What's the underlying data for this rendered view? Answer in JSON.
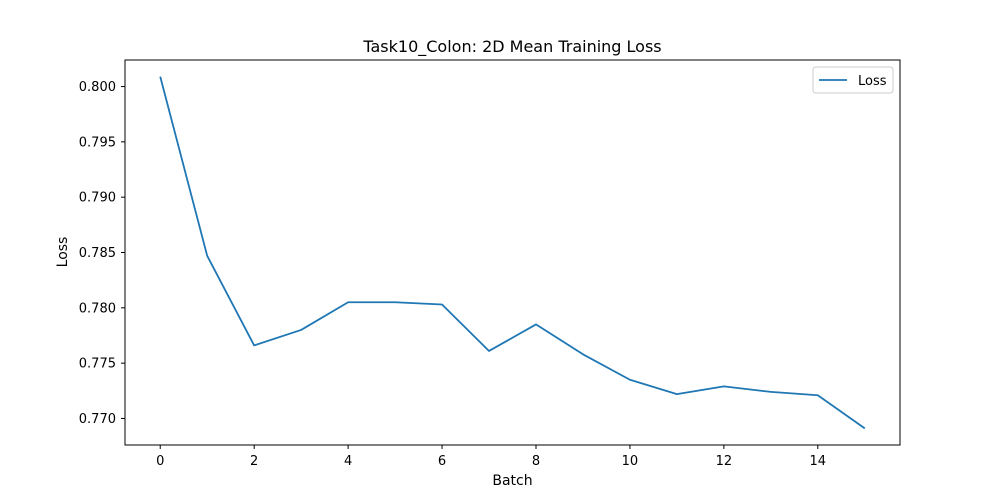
{
  "chart_data": {
    "type": "line",
    "title": "Task10_Colon: 2D Mean Training Loss",
    "xlabel": "Batch",
    "ylabel": "Loss",
    "x": [
      0,
      1,
      2,
      3,
      4,
      5,
      6,
      7,
      8,
      9,
      10,
      11,
      12,
      13,
      14,
      15
    ],
    "xlim": [
      -0.75,
      15.75
    ],
    "ylim": [
      0.7676,
      0.8024
    ],
    "xticks": [
      0,
      2,
      4,
      6,
      8,
      10,
      12,
      14
    ],
    "yticks": [
      0.77,
      0.775,
      0.78,
      0.785,
      0.79,
      0.795,
      0.8
    ],
    "xtick_labels": [
      "0",
      "2",
      "4",
      "6",
      "8",
      "10",
      "12",
      "14"
    ],
    "ytick_labels": [
      "0.770",
      "0.775",
      "0.780",
      "0.785",
      "0.790",
      "0.795",
      "0.800"
    ],
    "grid": false,
    "legend": "top-right",
    "series": [
      {
        "name": "Loss",
        "color": "#1f77b4",
        "values": [
          0.8009,
          0.7847,
          0.7766,
          0.778,
          0.7805,
          0.7805,
          0.7803,
          0.7761,
          0.7785,
          0.7758,
          0.7735,
          0.7722,
          0.7729,
          0.7724,
          0.7721,
          0.7691
        ]
      }
    ]
  }
}
